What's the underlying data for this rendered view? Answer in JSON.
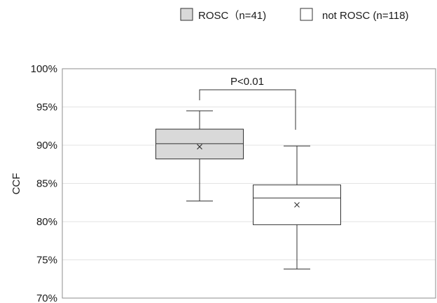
{
  "chart_data": {
    "type": "box",
    "xlabel": "",
    "ylabel": "CCF",
    "ylim": [
      70,
      100
    ],
    "yticks": [
      "70%",
      "75%",
      "80%",
      "85%",
      "90%",
      "95%",
      "100%"
    ],
    "grid": true,
    "legend_position": "top",
    "series": [
      {
        "name": "ROSC（n=41)",
        "min": 82.7,
        "q1": 88.2,
        "median": 90.2,
        "q3": 92.1,
        "max": 94.5,
        "mean": 89.8,
        "fill": "#d9d9d9"
      },
      {
        "name": "not ROSC (n=118)",
        "min": 73.8,
        "q1": 79.6,
        "median": 83.1,
        "q3": 84.8,
        "max": 89.9,
        "mean": 82.2,
        "fill": "#ffffff"
      }
    ],
    "annotation": {
      "text": "P<0.01"
    }
  }
}
